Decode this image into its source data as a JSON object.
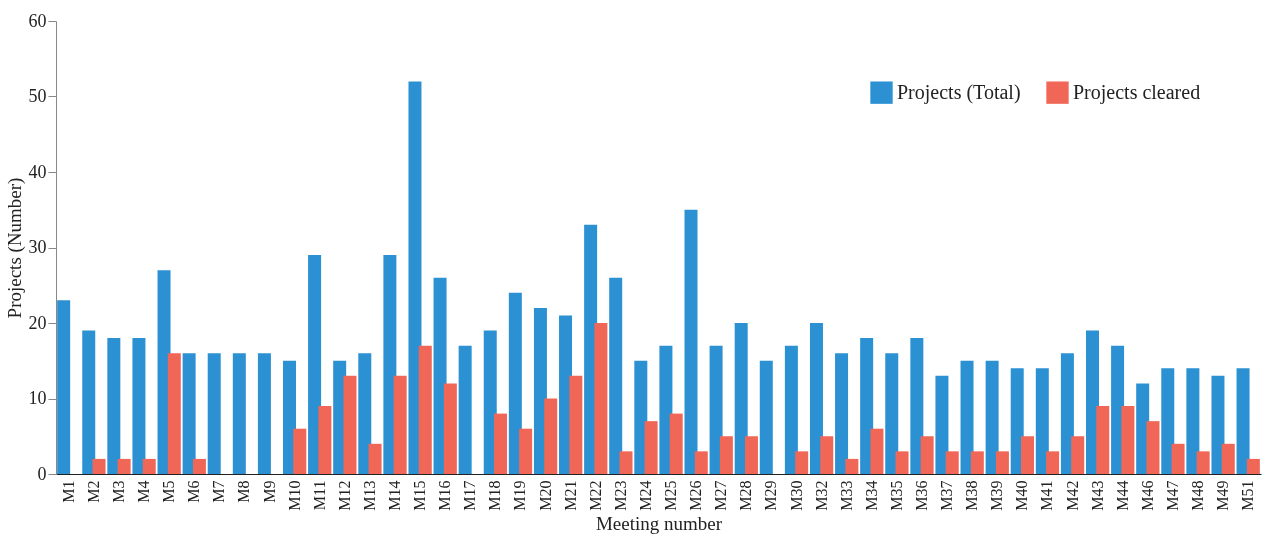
{
  "chart_data": {
    "type": "bar",
    "xlabel": "Meeting number",
    "ylabel": "Projects (Number)",
    "categories": [
      "M1",
      "M2",
      "M3",
      "M4",
      "M5",
      "M6",
      "M7",
      "M8",
      "M9",
      "M10",
      "M11",
      "M12",
      "M13",
      "M14",
      "M15",
      "M16",
      "M17",
      "M18",
      "M19",
      "M20",
      "M21",
      "M22",
      "M23",
      "M24",
      "M25",
      "M26",
      "M27",
      "M28",
      "M29",
      "M30",
      "M32",
      "M33",
      "M34",
      "M35",
      "M36",
      "M37",
      "M38",
      "M39",
      "M40",
      "M41",
      "M42",
      "M43",
      "M44",
      "M46",
      "M47",
      "M48",
      "M49",
      "M51"
    ],
    "series": [
      {
        "name": "Projects (Total)",
        "color": "#2b91d3",
        "values": [
          23,
          19,
          18,
          18,
          27,
          16,
          16,
          16,
          16,
          15,
          29,
          15,
          16,
          29,
          52,
          26,
          17,
          19,
          24,
          22,
          21,
          33,
          26,
          15,
          17,
          35,
          17,
          20,
          15,
          17,
          20,
          16,
          18,
          16,
          18,
          13,
          15,
          15,
          14,
          14,
          16,
          19,
          17,
          12,
          14,
          14,
          13,
          14
        ]
      },
      {
        "name": "Projects cleared",
        "color": "#f06757",
        "values": [
          0,
          2,
          2,
          2,
          16,
          2,
          0,
          0,
          0,
          6,
          9,
          13,
          4,
          13,
          17,
          12,
          0,
          8,
          6,
          10,
          13,
          20,
          3,
          7,
          8,
          3,
          5,
          5,
          0,
          3,
          5,
          2,
          6,
          3,
          5,
          3,
          3,
          3,
          5,
          3,
          5,
          9,
          9,
          7,
          4,
          3,
          4,
          2
        ]
      }
    ],
    "ylim": [
      0,
      60
    ],
    "yticks": [
      0,
      10,
      20,
      30,
      40,
      50,
      60
    ],
    "grid": false,
    "legend": "top right"
  }
}
